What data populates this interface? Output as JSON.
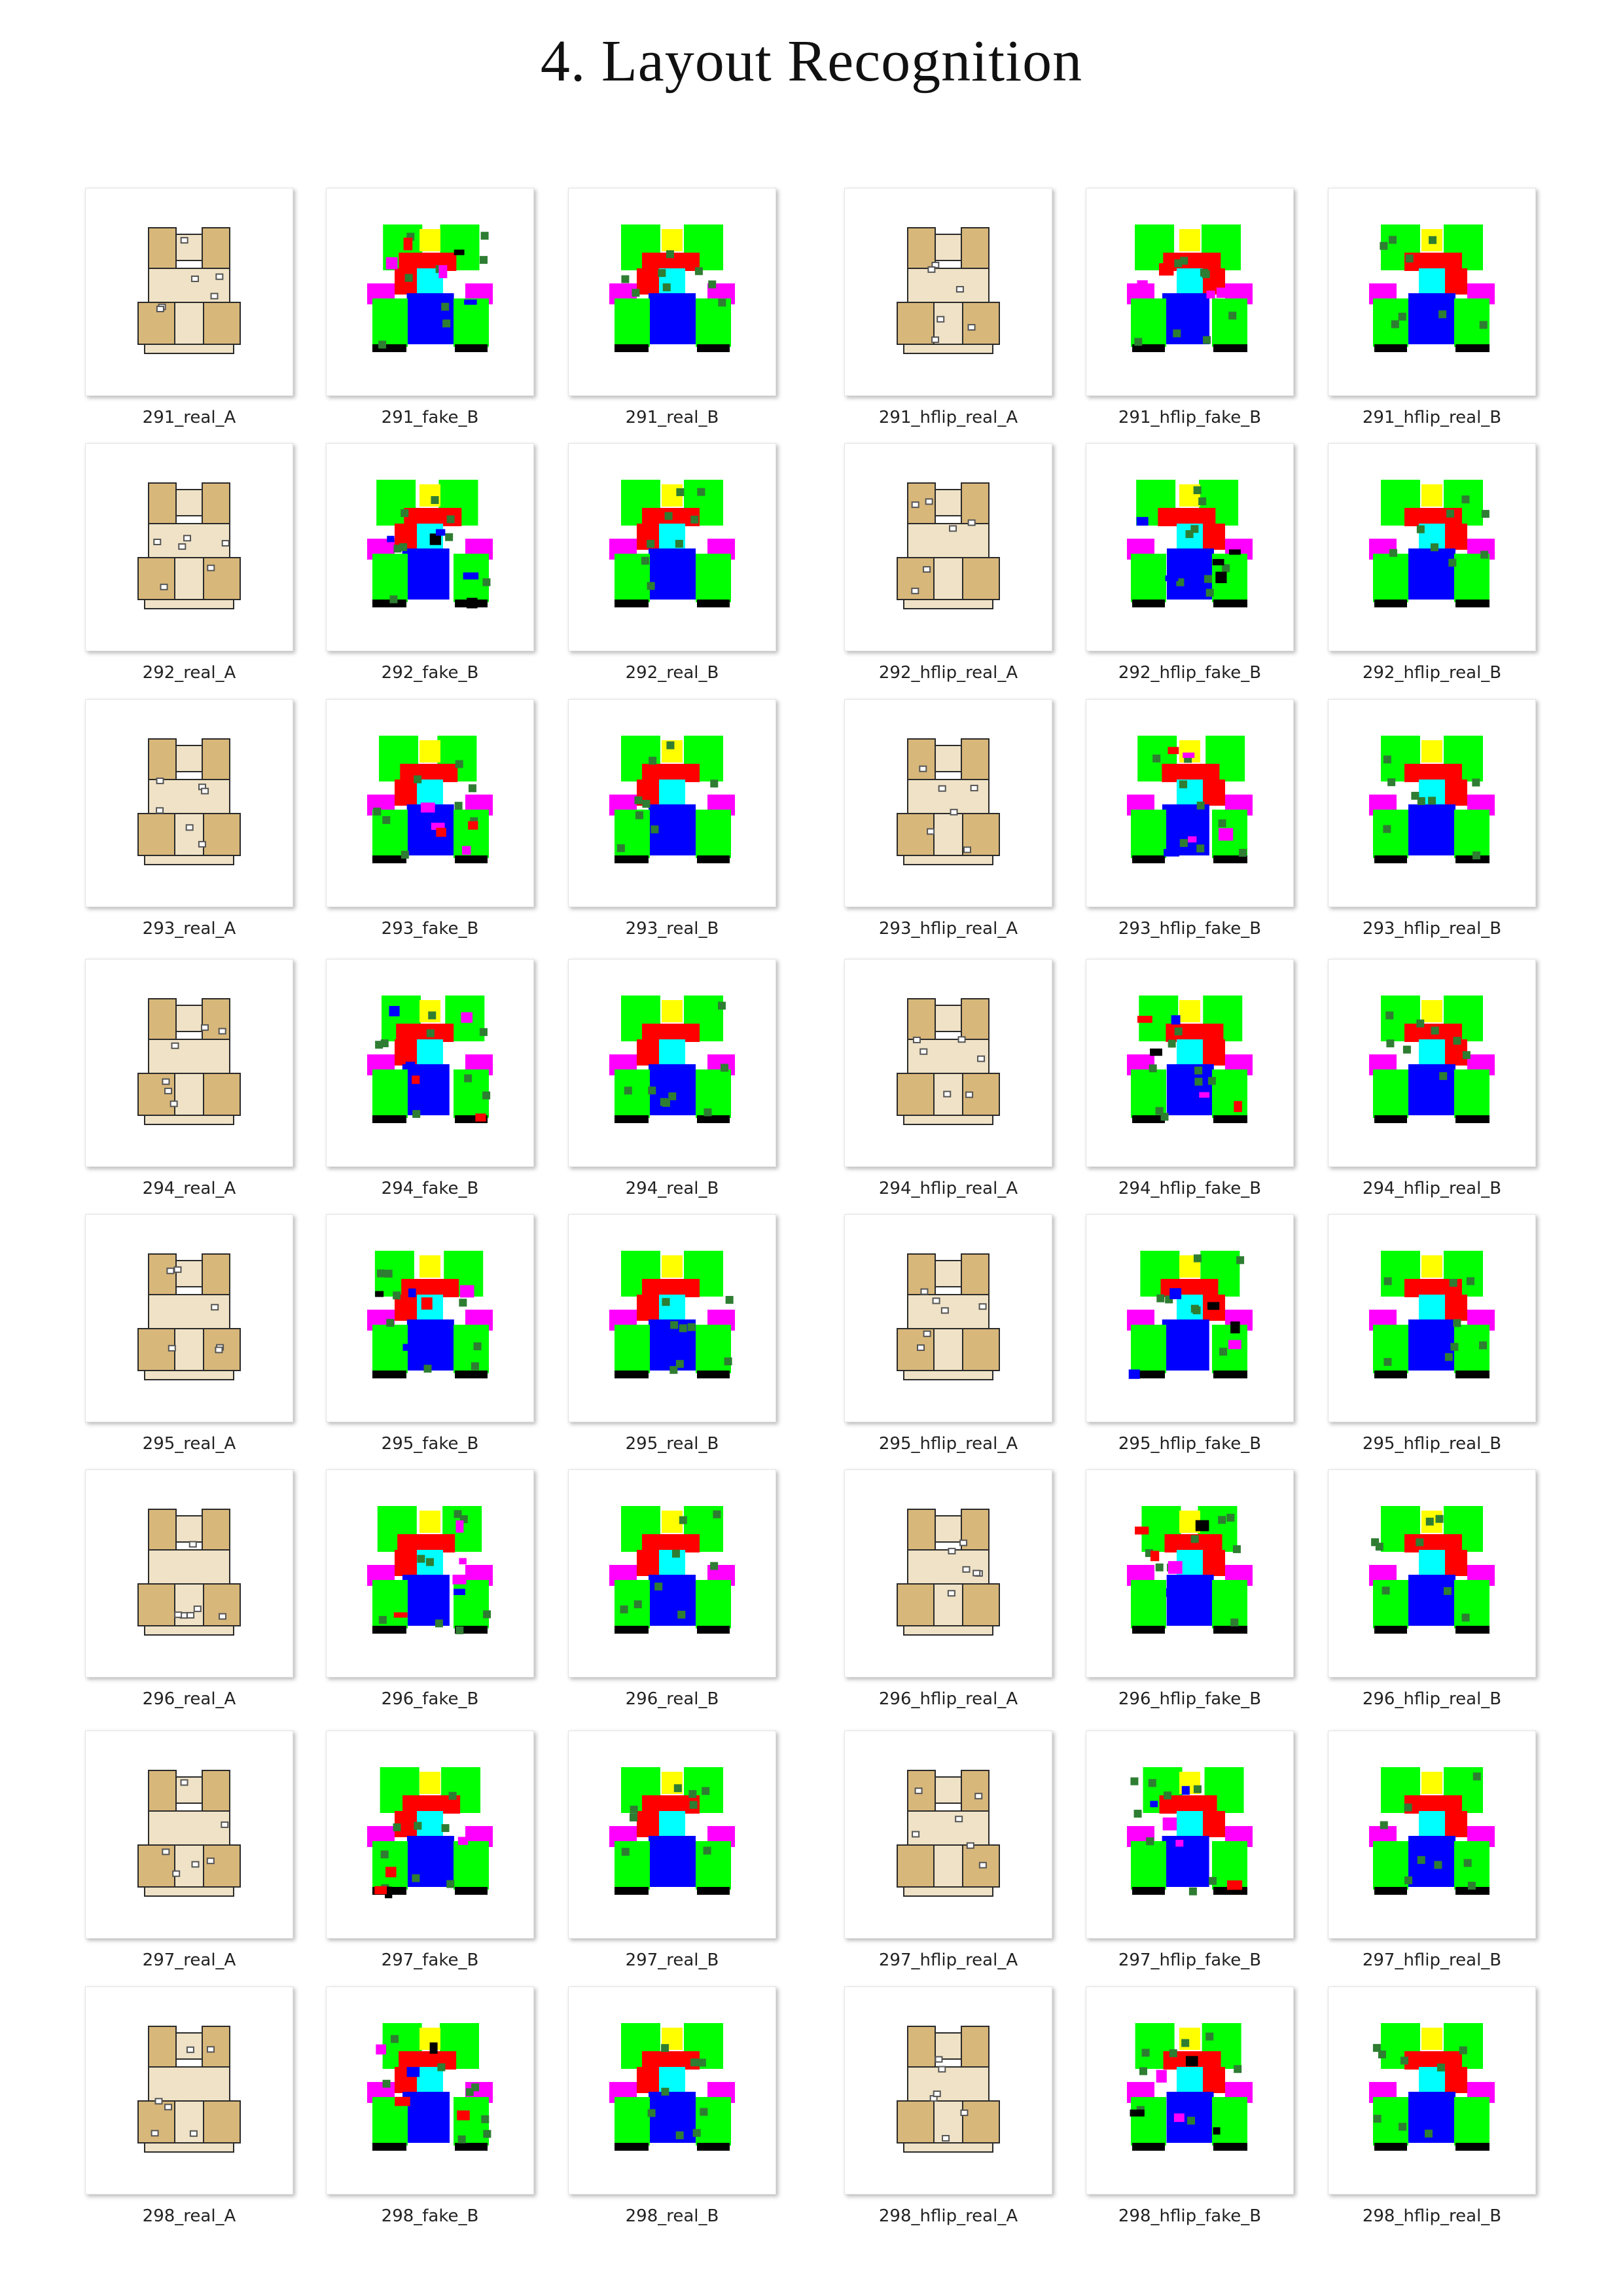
{
  "title": "4. Layout Recognition",
  "segmentation_colors": {
    "bedroom": "#00ff00",
    "living_room": "#0000ff",
    "corridor": "#ff0000",
    "kitchen": "#00ffff",
    "bathroom": "#ff00ff",
    "balcony": "#ffff00",
    "door_window": "#2e7d32",
    "wall": "#000000"
  },
  "floorplan_colors": {
    "floor_wood": "#d8b77a",
    "floor_tile": "#efe2c6",
    "wall": "#2b2b2b"
  },
  "rows": [
    {
      "id": "291",
      "captions": [
        "291_real_A",
        "291_fake_B",
        "291_real_B",
        "291_hflip_real_A",
        "291_hflip_fake_B",
        "291_hflip_real_B"
      ]
    },
    {
      "id": "292",
      "captions": [
        "292_real_A",
        "292_fake_B",
        "292_real_B",
        "292_hflip_real_A",
        "292_hflip_fake_B",
        "292_hflip_real_B"
      ]
    },
    {
      "id": "293",
      "captions": [
        "293_real_A",
        "293_fake_B",
        "293_real_B",
        "293_hflip_real_A",
        "293_hflip_fake_B",
        "293_hflip_real_B"
      ]
    },
    {
      "id": "294",
      "captions": [
        "294_real_A",
        "294_fake_B",
        "294_real_B",
        "294_hflip_real_A",
        "294_hflip_fake_B",
        "294_hflip_real_B"
      ]
    },
    {
      "id": "295",
      "captions": [
        "295_real_A",
        "295_fake_B",
        "295_real_B",
        "295_hflip_real_A",
        "295_hflip_fake_B",
        "295_hflip_real_B"
      ]
    },
    {
      "id": "296",
      "captions": [
        "296_real_A",
        "296_fake_B",
        "296_real_B",
        "296_hflip_real_A",
        "296_hflip_fake_B",
        "296_hflip_real_B"
      ]
    },
    {
      "id": "297",
      "captions": [
        "297_real_A",
        "297_fake_B",
        "297_real_B",
        "297_hflip_real_A",
        "297_hflip_fake_B",
        "297_hflip_real_B"
      ]
    },
    {
      "id": "298",
      "captions": [
        "298_real_A",
        "298_fake_B",
        "298_real_B",
        "298_hflip_real_A",
        "298_hflip_fake_B",
        "298_hflip_real_B"
      ]
    }
  ]
}
